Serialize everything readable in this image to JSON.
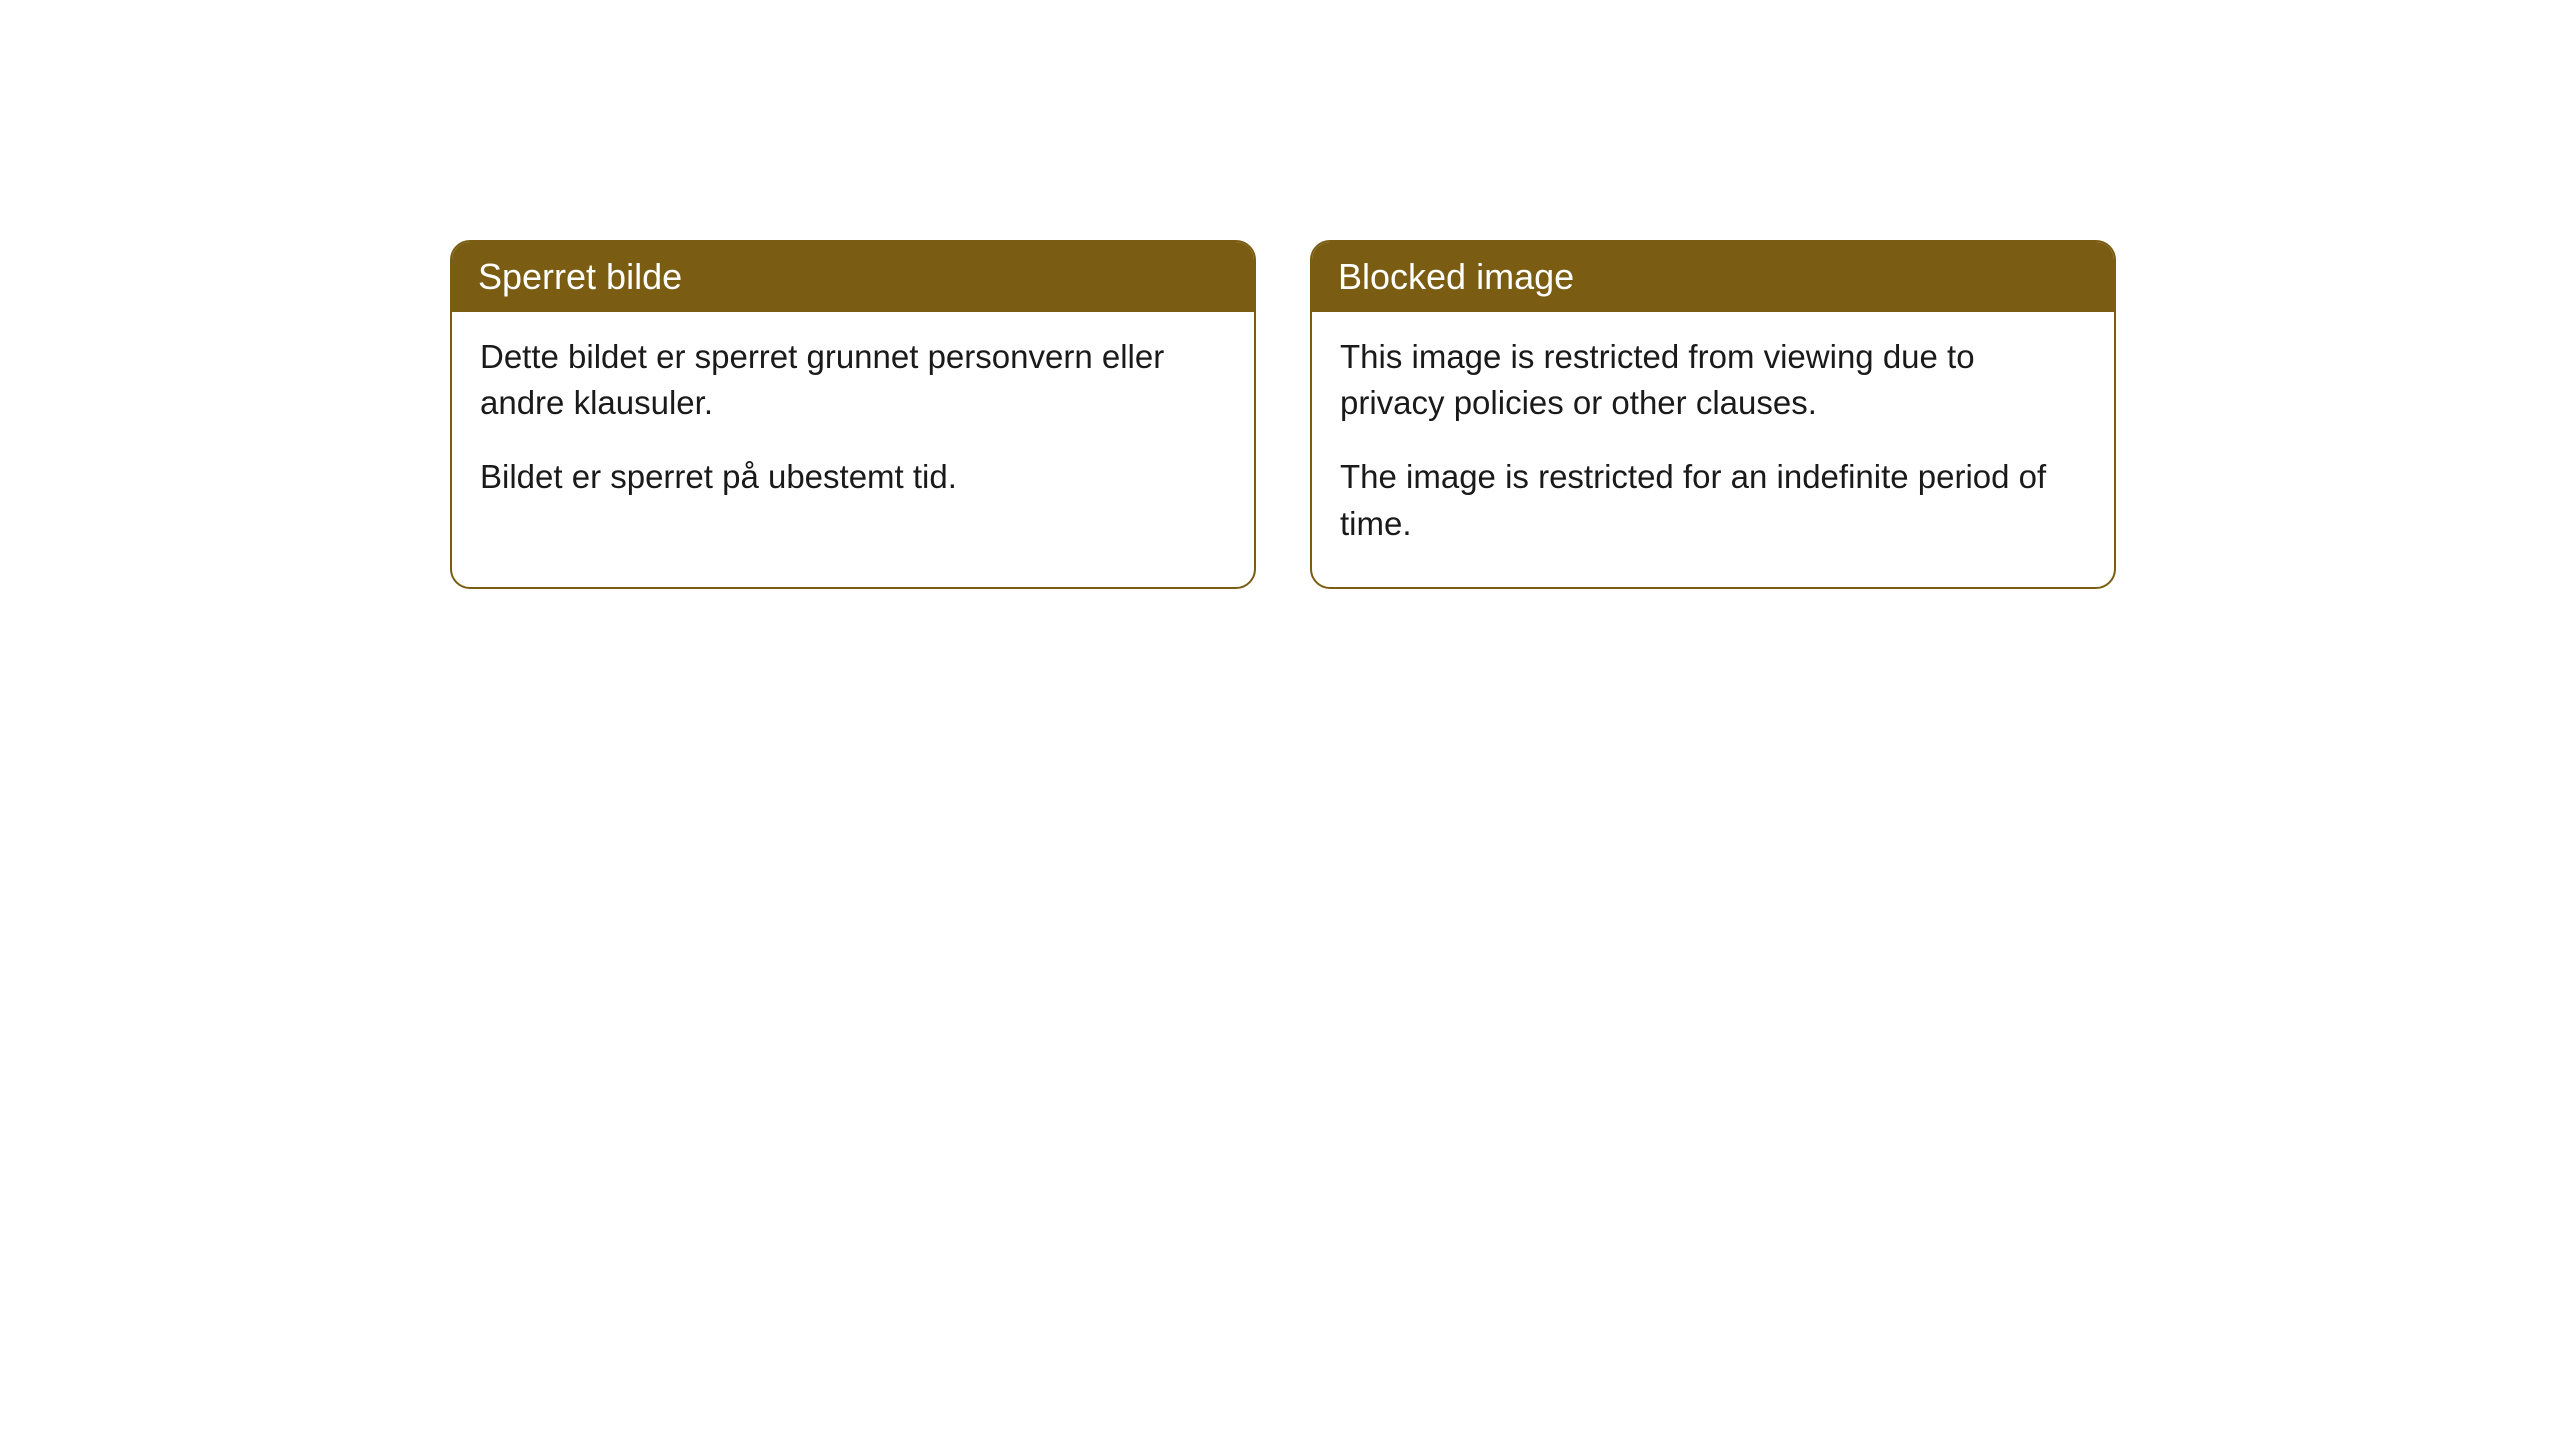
{
  "cards": [
    {
      "title": "Sperret bilde",
      "paragraph1": "Dette bildet er sperret grunnet personvern eller andre klausuler.",
      "paragraph2": "Bildet er sperret på ubestemt tid."
    },
    {
      "title": "Blocked image",
      "paragraph1": "This image is restricted from viewing due to privacy policies or other clauses.",
      "paragraph2": "The image is restricted for an indefinite period of time."
    }
  ],
  "style": {
    "header_bg_color": "#7a5d13",
    "header_text_color": "#ffffff",
    "border_color": "#7a5d13",
    "body_bg_color": "#ffffff",
    "body_text_color": "#1a1a1a",
    "border_radius": 20,
    "header_fontsize": 36,
    "body_fontsize": 33
  }
}
